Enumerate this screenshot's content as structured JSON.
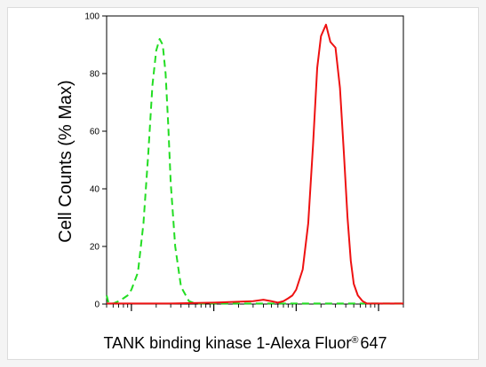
{
  "chart_data": {
    "type": "line",
    "title": "",
    "xlabel_main": "TANK binding kinase 1-Alexa Fluor",
    "xlabel_reg": "®",
    "xlabel_tail": "647",
    "ylabel": "Cell Counts (% Max)",
    "x_scale": "log",
    "xlim": [
      0.5,
      2000
    ],
    "ylim": [
      0,
      100
    ],
    "y_ticks": [
      0,
      20,
      40,
      60,
      80,
      100
    ],
    "x_major_ticks": [
      1,
      10,
      100,
      1000
    ],
    "grid": false,
    "legend": "none",
    "series": [
      {
        "color": "#22dd22",
        "style": "dashed",
        "x": [
          0.5,
          0.53,
          0.6,
          0.7,
          0.8,
          0.9,
          1.0,
          1.2,
          1.4,
          1.6,
          1.8,
          2.0,
          2.2,
          2.4,
          2.6,
          2.8,
          3.0,
          3.4,
          4.0,
          5.0,
          6.0,
          10,
          100,
          2000
        ],
        "values": [
          3,
          0,
          0,
          1,
          2,
          3,
          5,
          11,
          28,
          52,
          76,
          88,
          92,
          90,
          80,
          62,
          42,
          20,
          6,
          1,
          0,
          0,
          0,
          0
        ]
      },
      {
        "color": "#ee1111",
        "style": "solid",
        "x": [
          0.5,
          3.0,
          10,
          30,
          40,
          50,
          60,
          70,
          80,
          90,
          100,
          120,
          140,
          160,
          180,
          200,
          230,
          260,
          300,
          340,
          380,
          420,
          460,
          500,
          560,
          640,
          720,
          820,
          1000,
          2000
        ],
        "values": [
          0,
          0,
          0.5,
          1,
          1.5,
          1,
          0.5,
          1,
          2,
          3,
          5,
          12,
          28,
          55,
          82,
          93,
          97,
          91,
          89,
          75,
          52,
          30,
          15,
          7,
          3,
          1,
          0,
          0,
          0,
          0
        ]
      }
    ]
  }
}
